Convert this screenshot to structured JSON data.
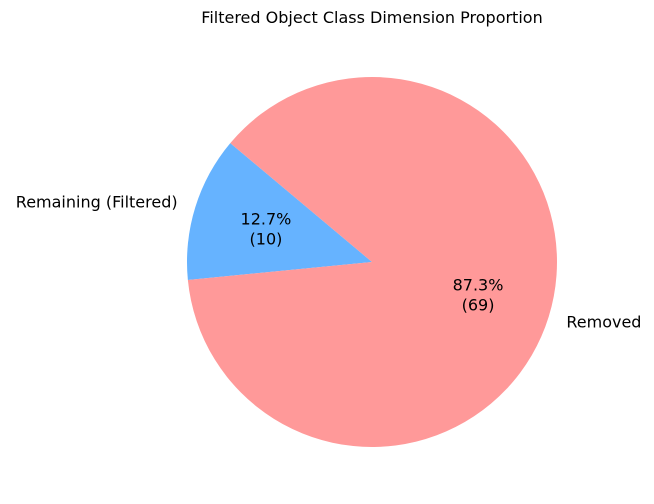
{
  "chart_data": {
    "type": "pie",
    "title": "Filtered Object Class Dimension Proportion",
    "slices": [
      {
        "label": "Remaining (Filtered)",
        "value": 10,
        "percent_label": "12.7%",
        "count_label": "(10)",
        "color": "#66b3ff"
      },
      {
        "label": "Removed",
        "value": 69,
        "percent_label": "87.3%",
        "count_label": "(69)",
        "color": "#ff9999"
      }
    ],
    "start_angle_deg": 140,
    "direction": "counterclockwise",
    "legend": "none"
  }
}
